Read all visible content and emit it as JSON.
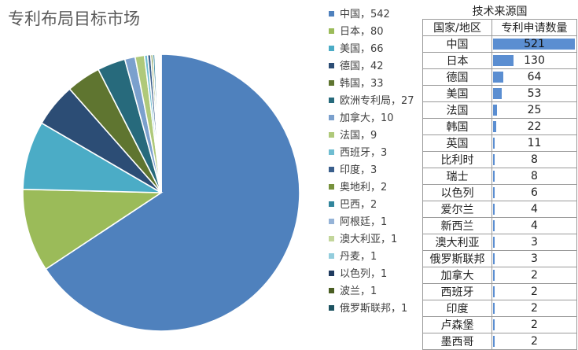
{
  "chart_data": [
    {
      "type": "pie",
      "title": "专利布局目标市场",
      "legend_position": "right",
      "slices": [
        {
          "label": "中国",
          "value": 542,
          "color": "#4f81bd"
        },
        {
          "label": "日本",
          "value": 80,
          "color": "#9bbb59"
        },
        {
          "label": "美国",
          "value": 66,
          "color": "#4bacc6"
        },
        {
          "label": "德国",
          "value": 42,
          "color": "#2c4d75"
        },
        {
          "label": "韩国",
          "value": 33,
          "color": "#5f7530"
        },
        {
          "label": "欧洲专利局",
          "value": 27,
          "color": "#276a7c"
        },
        {
          "label": "加拿大",
          "value": 10,
          "color": "#7ba0cd"
        },
        {
          "label": "法国",
          "value": 9,
          "color": "#afc97a"
        },
        {
          "label": "西班牙",
          "value": 3,
          "color": "#6fbdd1"
        },
        {
          "label": "印度",
          "value": 3,
          "color": "#3a5f8c"
        },
        {
          "label": "奥地利",
          "value": 2,
          "color": "#77923c"
        },
        {
          "label": "巴西",
          "value": 2,
          "color": "#31859c"
        },
        {
          "label": "阿根廷",
          "value": 1,
          "color": "#95b3d7"
        },
        {
          "label": "澳大利亚",
          "value": 1,
          "color": "#c3d69b"
        },
        {
          "label": "丹麦",
          "value": 1,
          "color": "#93cddd"
        },
        {
          "label": "以色列",
          "value": 1,
          "color": "#1f3a5f"
        },
        {
          "label": "波兰",
          "value": 1,
          "color": "#4a5e23"
        },
        {
          "label": "俄罗斯联邦",
          "value": 1,
          "color": "#1d5361"
        }
      ]
    },
    {
      "type": "table",
      "title": "技术来源国",
      "columns": [
        "国家/地区",
        "专利申请数量"
      ],
      "bar_color": "#5b8ed1",
      "max_value": 521,
      "rows": [
        {
          "country": "中国",
          "value": 521
        },
        {
          "country": "日本",
          "value": 130
        },
        {
          "country": "德国",
          "value": 64
        },
        {
          "country": "美国",
          "value": 53
        },
        {
          "country": "法国",
          "value": 25
        },
        {
          "country": "韩国",
          "value": 22
        },
        {
          "country": "英国",
          "value": 11
        },
        {
          "country": "比利时",
          "value": 8
        },
        {
          "country": "瑞士",
          "value": 8
        },
        {
          "country": "以色列",
          "value": 6
        },
        {
          "country": "爱尔兰",
          "value": 4
        },
        {
          "country": "新西兰",
          "value": 4
        },
        {
          "country": "澳大利亚",
          "value": 3
        },
        {
          "country": "俄罗斯联邦",
          "value": 3
        },
        {
          "country": "加拿大",
          "value": 2
        },
        {
          "country": "西班牙",
          "value": 2
        },
        {
          "country": "印度",
          "value": 2
        },
        {
          "country": "卢森堡",
          "value": 2
        },
        {
          "country": "墨西哥",
          "value": 2
        }
      ]
    }
  ]
}
